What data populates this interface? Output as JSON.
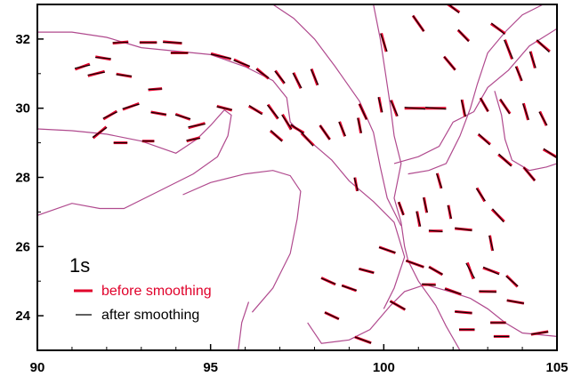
{
  "chart_data": {
    "type": "map",
    "xlim": [
      90,
      105
    ],
    "ylim": [
      23,
      33
    ],
    "x_ticks": [
      "90",
      "95",
      "100",
      "105"
    ],
    "y_ticks": [
      "24",
      "26",
      "28",
      "30",
      "32"
    ],
    "grid": false,
    "legend": {
      "placement": "lower-left",
      "period": "1s",
      "entries": [
        {
          "label": "before smoothing",
          "color": "#e0002a"
        },
        {
          "label": "after smoothing",
          "color": "#000000"
        }
      ]
    },
    "colors": {
      "boundary": "#b04a8e",
      "before": "#e0002a",
      "after": "#000000"
    },
    "boundaries": [
      [
        [
          90,
          32.2
        ],
        [
          91,
          32.2
        ],
        [
          92,
          32.05
        ],
        [
          93,
          31.75
        ],
        [
          94,
          31.65
        ],
        [
          95,
          31.55
        ],
        [
          96,
          31.2
        ],
        [
          96.8,
          30.8
        ],
        [
          97.2,
          30.3
        ],
        [
          97.3,
          29.6
        ],
        [
          97.8,
          29.1
        ],
        [
          98.5,
          28.5
        ],
        [
          99,
          27.9
        ],
        [
          99.7,
          27.3
        ],
        [
          100.3,
          26.7
        ],
        [
          100.6,
          25.7
        ],
        [
          100.3,
          24.8
        ],
        [
          100,
          24.2
        ]
      ],
      [
        [
          90,
          29.4
        ],
        [
          91,
          29.35
        ],
        [
          92,
          29.25
        ],
        [
          93,
          29.05
        ],
        [
          94,
          28.7
        ],
        [
          94.6,
          29.1
        ],
        [
          95,
          29.5
        ],
        [
          95.4,
          29.95
        ],
        [
          95.6,
          29.8
        ],
        [
          95.5,
          29.2
        ],
        [
          95.2,
          28.6
        ],
        [
          94.5,
          28.1
        ],
        [
          93.5,
          27.6
        ],
        [
          92.5,
          27.1
        ],
        [
          91.8,
          27.1
        ],
        [
          91,
          27.25
        ],
        [
          90,
          26.9
        ]
      ],
      [
        [
          94.2,
          27.5
        ],
        [
          95,
          27.85
        ],
        [
          96,
          28.1
        ],
        [
          96.8,
          28.2
        ],
        [
          97.3,
          28.05
        ],
        [
          97.6,
          27.6
        ],
        [
          97.5,
          26.8
        ],
        [
          97.3,
          25.8
        ],
        [
          96.8,
          24.8
        ],
        [
          96.2,
          24.1
        ]
      ],
      [
        [
          95.8,
          23
        ],
        [
          95.9,
          23.8
        ],
        [
          96.1,
          24.4
        ]
      ],
      [
        [
          96.8,
          33
        ],
        [
          97.4,
          32.6
        ],
        [
          98,
          32
        ],
        [
          98.6,
          31.2
        ],
        [
          99.3,
          30.2
        ],
        [
          99.7,
          29.3
        ],
        [
          99.9,
          28.3
        ],
        [
          100.1,
          27.4
        ],
        [
          100.5,
          26.6
        ]
      ],
      [
        [
          99.7,
          33
        ],
        [
          99.9,
          32
        ],
        [
          100.05,
          31
        ],
        [
          100.2,
          30
        ],
        [
          100.3,
          29.2
        ],
        [
          100.5,
          28.4
        ],
        [
          100.3,
          27.4
        ],
        [
          100.5,
          26.7
        ],
        [
          100.6,
          26
        ],
        [
          100.7,
          25.6
        ],
        [
          101,
          25
        ],
        [
          101.5,
          24.3
        ],
        [
          101.8,
          23.7
        ],
        [
          102.2,
          23
        ]
      ],
      [
        [
          97.8,
          23.8
        ],
        [
          98.2,
          23.2
        ],
        [
          99,
          23.3
        ],
        [
          99.6,
          23.6
        ],
        [
          100.2,
          24.3
        ],
        [
          100.6,
          24.7
        ],
        [
          101.2,
          24.9
        ],
        [
          101.9,
          24.7
        ],
        [
          102.5,
          24.5
        ],
        [
          103,
          24.2
        ],
        [
          103.5,
          23.8
        ],
        [
          104,
          23.5
        ],
        [
          105,
          23.4
        ]
      ],
      [
        [
          100.3,
          28.4
        ],
        [
          101,
          28.6
        ],
        [
          101.6,
          28.9
        ],
        [
          102,
          29.6
        ],
        [
          102.6,
          29.9
        ],
        [
          103,
          30.6
        ],
        [
          103.6,
          31.1
        ],
        [
          104.2,
          31.8
        ],
        [
          105,
          32.3
        ]
      ],
      [
        [
          100.7,
          28.1
        ],
        [
          101.3,
          28.2
        ],
        [
          101.8,
          28.4
        ],
        [
          102.2,
          29.2
        ],
        [
          102.5,
          30
        ],
        [
          102.7,
          30.7
        ],
        [
          103,
          31.6
        ],
        [
          103.5,
          32.2
        ],
        [
          104,
          32.7
        ],
        [
          104.6,
          33
        ]
      ],
      [
        [
          103.2,
          30.5
        ],
        [
          103.4,
          29.8
        ],
        [
          103.5,
          29.1
        ],
        [
          103.7,
          28.5
        ],
        [
          104.2,
          28.2
        ],
        [
          104.7,
          28.3
        ],
        [
          105,
          28.4
        ]
      ]
    ],
    "segments_before": [
      [
        91.3,
        31.2,
        20,
        0.45
      ],
      [
        91.9,
        31.45,
        -10,
        0.45
      ],
      [
        92.4,
        31.9,
        5,
        0.45
      ],
      [
        93.2,
        31.9,
        0,
        0.5
      ],
      [
        93.9,
        31.9,
        -5,
        0.55
      ],
      [
        91.7,
        31.0,
        15,
        0.5
      ],
      [
        92.5,
        30.95,
        -10,
        0.45
      ],
      [
        93.4,
        30.55,
        5,
        0.4
      ],
      [
        94.1,
        31.6,
        0,
        0.5
      ],
      [
        95.3,
        31.5,
        -15,
        0.6
      ],
      [
        95.9,
        31.3,
        -25,
        0.5
      ],
      [
        96.5,
        31.0,
        -40,
        0.45
      ],
      [
        97.0,
        30.9,
        -55,
        0.45
      ],
      [
        97.5,
        30.8,
        -65,
        0.5
      ],
      [
        98.0,
        30.9,
        -70,
        0.5
      ],
      [
        96.3,
        29.95,
        -30,
        0.45
      ],
      [
        96.8,
        29.9,
        -55,
        0.5
      ],
      [
        97.2,
        29.6,
        -60,
        0.5
      ],
      [
        97.5,
        29.4,
        -30,
        0.45
      ],
      [
        96.9,
        29.2,
        -40,
        0.45
      ],
      [
        97.8,
        29.1,
        -45,
        0.5
      ],
      [
        98.3,
        29.3,
        -55,
        0.5
      ],
      [
        98.8,
        29.4,
        -70,
        0.45
      ],
      [
        99.4,
        29.9,
        -65,
        0.5
      ],
      [
        99.3,
        29.5,
        -80,
        0.45
      ],
      [
        99.9,
        30.1,
        -80,
        0.45
      ],
      [
        100.3,
        30.0,
        -70,
        0.5
      ],
      [
        100.9,
        30.0,
        0,
        0.6
      ],
      [
        101.5,
        30.0,
        0,
        0.6
      ],
      [
        102.3,
        30.0,
        -80,
        0.5
      ],
      [
        102.9,
        30.1,
        -60,
        0.45
      ],
      [
        103.5,
        30.05,
        -55,
        0.5
      ],
      [
        104.1,
        29.9,
        -75,
        0.5
      ],
      [
        104.6,
        29.7,
        -65,
        0.45
      ],
      [
        104.8,
        28.7,
        -30,
        0.45
      ],
      [
        103.6,
        31.7,
        -70,
        0.6
      ],
      [
        103.3,
        32.3,
        -35,
        0.5
      ],
      [
        102.3,
        32.1,
        -45,
        0.45
      ],
      [
        101.0,
        32.45,
        -55,
        0.55
      ],
      [
        100.0,
        31.9,
        -75,
        0.55
      ],
      [
        101.9,
        31.3,
        -50,
        0.5
      ],
      [
        103.9,
        31.0,
        -70,
        0.45
      ],
      [
        104.3,
        31.4,
        -75,
        0.5
      ],
      [
        104.6,
        31.8,
        -40,
        0.5
      ],
      [
        102.0,
        32.9,
        -35,
        0.45
      ],
      [
        102.9,
        29.1,
        -40,
        0.45
      ],
      [
        103.5,
        28.5,
        -40,
        0.5
      ],
      [
        104.2,
        28.1,
        -50,
        0.5
      ],
      [
        102.8,
        27.5,
        -60,
        0.45
      ],
      [
        103.3,
        26.9,
        -45,
        0.5
      ],
      [
        101.6,
        27.9,
        -75,
        0.45
      ],
      [
        101.2,
        27.2,
        -80,
        0.45
      ],
      [
        101.9,
        27.0,
        -80,
        0.4
      ],
      [
        101.5,
        26.45,
        0,
        0.4
      ],
      [
        102.3,
        26.5,
        -5,
        0.5
      ],
      [
        103.1,
        26.1,
        -80,
        0.45
      ],
      [
        102.5,
        25.3,
        -70,
        0.5
      ],
      [
        103.1,
        25.3,
        -20,
        0.5
      ],
      [
        103.7,
        25.0,
        -45,
        0.45
      ],
      [
        101.5,
        25.3,
        -30,
        0.45
      ],
      [
        100.9,
        25.5,
        -20,
        0.55
      ],
      [
        100.1,
        25.9,
        -20,
        0.5
      ],
      [
        99.5,
        25.3,
        -15,
        0.45
      ],
      [
        99.0,
        24.8,
        -20,
        0.45
      ],
      [
        98.4,
        25.0,
        -25,
        0.45
      ],
      [
        100.4,
        24.3,
        -30,
        0.5
      ],
      [
        98.5,
        24.0,
        -25,
        0.45
      ],
      [
        101.3,
        24.9,
        0,
        0.4
      ],
      [
        102.0,
        24.7,
        -20,
        0.5
      ],
      [
        103.0,
        24.7,
        0,
        0.5
      ],
      [
        103.8,
        24.4,
        -10,
        0.5
      ],
      [
        102.3,
        24.1,
        -5,
        0.5
      ],
      [
        103.3,
        23.8,
        0,
        0.45
      ],
      [
        102.4,
        23.6,
        0,
        0.45
      ],
      [
        104.5,
        23.5,
        10,
        0.5
      ],
      [
        103.4,
        23.4,
        0,
        0.45
      ],
      [
        99.4,
        23.3,
        -20,
        0.5
      ],
      [
        101.0,
        26.8,
        -80,
        0.45
      ],
      [
        100.5,
        27.1,
        -70,
        0.4
      ],
      [
        99.2,
        27.8,
        -80,
        0.4
      ],
      [
        92.1,
        29.8,
        30,
        0.45
      ],
      [
        92.7,
        30.05,
        20,
        0.5
      ],
      [
        93.5,
        29.85,
        -10,
        0.45
      ],
      [
        94.2,
        29.75,
        -20,
        0.45
      ],
      [
        94.6,
        29.5,
        15,
        0.5
      ],
      [
        95.4,
        30.0,
        -15,
        0.45
      ],
      [
        92.4,
        29.0,
        0,
        0.4
      ],
      [
        93.2,
        29.05,
        0,
        0.35
      ],
      [
        94.5,
        29.1,
        15,
        0.4
      ],
      [
        91.8,
        29.3,
        40,
        0.5
      ]
    ],
    "segments_after": [
      [
        91.3,
        31.2,
        12,
        0.45
      ],
      [
        91.9,
        31.45,
        -5,
        0.45
      ],
      [
        92.4,
        31.9,
        2,
        0.45
      ],
      [
        93.2,
        31.9,
        0,
        0.5
      ],
      [
        93.9,
        31.9,
        -2,
        0.55
      ],
      [
        91.7,
        31.0,
        10,
        0.5
      ],
      [
        92.5,
        30.95,
        -6,
        0.45
      ],
      [
        93.4,
        30.55,
        2,
        0.4
      ],
      [
        94.1,
        31.6,
        0,
        0.5
      ],
      [
        95.3,
        31.5,
        -12,
        0.6
      ],
      [
        95.9,
        31.3,
        -20,
        0.5
      ],
      [
        96.5,
        31.0,
        -35,
        0.45
      ],
      [
        97.0,
        30.9,
        -50,
        0.45
      ],
      [
        97.5,
        30.8,
        -60,
        0.5
      ],
      [
        98.0,
        30.9,
        -65,
        0.5
      ],
      [
        96.3,
        29.95,
        -35,
        0.45
      ],
      [
        96.8,
        29.9,
        -50,
        0.5
      ],
      [
        97.2,
        29.6,
        -55,
        0.5
      ],
      [
        97.5,
        29.4,
        -35,
        0.45
      ],
      [
        96.9,
        29.2,
        -45,
        0.45
      ],
      [
        97.8,
        29.1,
        -50,
        0.5
      ],
      [
        98.3,
        29.3,
        -55,
        0.5
      ],
      [
        98.8,
        29.4,
        -65,
        0.45
      ],
      [
        99.4,
        29.9,
        -65,
        0.5
      ],
      [
        99.3,
        29.5,
        -75,
        0.45
      ],
      [
        99.9,
        30.1,
        -75,
        0.45
      ],
      [
        100.3,
        30.0,
        -65,
        0.5
      ],
      [
        100.9,
        30.0,
        -5,
        0.6
      ],
      [
        101.5,
        30.0,
        -5,
        0.6
      ],
      [
        102.3,
        30.0,
        -75,
        0.5
      ],
      [
        102.9,
        30.1,
        -60,
        0.45
      ],
      [
        103.5,
        30.05,
        -58,
        0.5
      ],
      [
        104.1,
        29.9,
        -70,
        0.5
      ],
      [
        104.6,
        29.7,
        -60,
        0.45
      ],
      [
        104.8,
        28.7,
        -35,
        0.45
      ],
      [
        103.6,
        31.7,
        -65,
        0.6
      ],
      [
        103.3,
        32.3,
        -40,
        0.5
      ],
      [
        102.3,
        32.1,
        -48,
        0.45
      ],
      [
        101.0,
        32.45,
        -55,
        0.55
      ],
      [
        100.0,
        31.9,
        -70,
        0.55
      ],
      [
        101.9,
        31.3,
        -50,
        0.5
      ],
      [
        103.9,
        31.0,
        -65,
        0.45
      ],
      [
        104.3,
        31.4,
        -70,
        0.5
      ],
      [
        104.6,
        31.8,
        -45,
        0.5
      ],
      [
        102.0,
        32.9,
        -40,
        0.45
      ],
      [
        102.9,
        29.1,
        -45,
        0.45
      ],
      [
        103.5,
        28.5,
        -45,
        0.5
      ],
      [
        104.2,
        28.1,
        -50,
        0.5
      ],
      [
        102.8,
        27.5,
        -55,
        0.45
      ],
      [
        103.3,
        26.9,
        -50,
        0.5
      ],
      [
        101.6,
        27.9,
        -70,
        0.45
      ],
      [
        101.2,
        27.2,
        -75,
        0.45
      ],
      [
        101.9,
        27.0,
        -75,
        0.4
      ],
      [
        101.5,
        26.45,
        -5,
        0.4
      ],
      [
        102.3,
        26.5,
        -8,
        0.5
      ],
      [
        103.1,
        26.1,
        -75,
        0.45
      ],
      [
        102.5,
        25.3,
        -60,
        0.5
      ],
      [
        103.1,
        25.3,
        -25,
        0.5
      ],
      [
        103.7,
        25.0,
        -40,
        0.45
      ],
      [
        101.5,
        25.3,
        -28,
        0.45
      ],
      [
        100.9,
        25.5,
        -20,
        0.55
      ],
      [
        100.1,
        25.9,
        -18,
        0.5
      ],
      [
        99.5,
        25.3,
        -15,
        0.45
      ],
      [
        99.0,
        24.8,
        -18,
        0.45
      ],
      [
        98.4,
        25.0,
        -22,
        0.45
      ],
      [
        100.4,
        24.3,
        -28,
        0.5
      ],
      [
        98.5,
        24.0,
        -25,
        0.45
      ],
      [
        101.3,
        24.9,
        -5,
        0.4
      ],
      [
        102.0,
        24.7,
        -18,
        0.5
      ],
      [
        103.0,
        24.7,
        -3,
        0.5
      ],
      [
        103.8,
        24.4,
        -10,
        0.5
      ],
      [
        102.3,
        24.1,
        -5,
        0.5
      ],
      [
        103.3,
        23.8,
        0,
        0.45
      ],
      [
        102.4,
        23.6,
        0,
        0.45
      ],
      [
        104.5,
        23.5,
        8,
        0.5
      ],
      [
        103.4,
        23.4,
        0,
        0.45
      ],
      [
        99.4,
        23.3,
        -20,
        0.5
      ],
      [
        101.0,
        26.8,
        -75,
        0.45
      ],
      [
        100.5,
        27.1,
        -70,
        0.4
      ],
      [
        99.2,
        27.8,
        -75,
        0.4
      ],
      [
        92.1,
        29.8,
        25,
        0.45
      ],
      [
        92.7,
        30.05,
        15,
        0.5
      ],
      [
        93.5,
        29.85,
        -8,
        0.45
      ],
      [
        94.2,
        29.75,
        -15,
        0.45
      ],
      [
        94.6,
        29.5,
        10,
        0.5
      ],
      [
        95.4,
        30.0,
        -12,
        0.45
      ],
      [
        92.4,
        29.0,
        0,
        0.4
      ],
      [
        93.2,
        29.05,
        0,
        0.35
      ],
      [
        94.5,
        29.1,
        10,
        0.4
      ],
      [
        91.8,
        29.3,
        35,
        0.5
      ]
    ]
  }
}
